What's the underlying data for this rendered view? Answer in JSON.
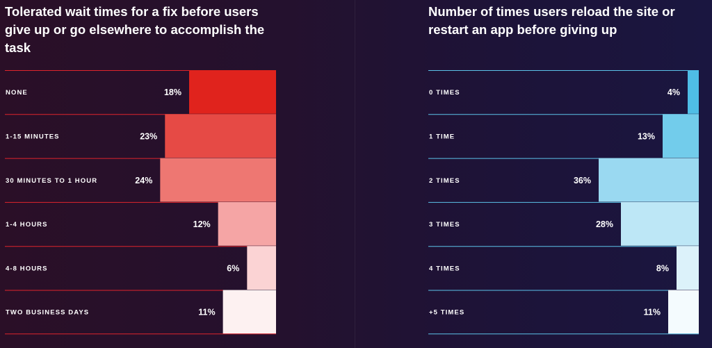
{
  "chart_data": [
    {
      "type": "bar",
      "title": "Tolerated wait times for a fix before users give up or go elsewhere to accomplish the task",
      "categories": [
        "NONE",
        "1-15 MINUTES",
        "30 MINUTES TO 1 HOUR",
        "1-4 HOURS",
        "4-8 HOURS",
        "TWO BUSINESS DAYS"
      ],
      "values": [
        18,
        23,
        24,
        12,
        6,
        11
      ],
      "value_labels": [
        "18%",
        "23%",
        "24%",
        "12%",
        "6%",
        "11%"
      ],
      "orientation": "horizontal",
      "xlim": [
        0,
        36
      ],
      "line_color": "#e0242c",
      "bar_colors": [
        "#e0231d",
        "#e64a45",
        "#ee7772",
        "#f5a5a5",
        "#fbd3d4",
        "#fdf1f1"
      ]
    },
    {
      "type": "bar",
      "title": "Number of times users reload the site or restart an app before giving up",
      "categories": [
        "0 TIMES",
        "1 TIME",
        "2 TIMES",
        "3 TIMES",
        "4 TIMES",
        "+5 TIMES"
      ],
      "values": [
        4,
        13,
        36,
        28,
        8,
        11
      ],
      "value_labels": [
        "4%",
        "13%",
        "36%",
        "28%",
        "8%",
        "11%"
      ],
      "orientation": "horizontal",
      "xlim": [
        0,
        36
      ],
      "line_color": "#5cc3ea",
      "bar_colors": [
        "#4fbde6",
        "#72cceb",
        "#9ad9f1",
        "#bde7f6",
        "#dcf2fa",
        "#f4fbfe"
      ]
    }
  ]
}
